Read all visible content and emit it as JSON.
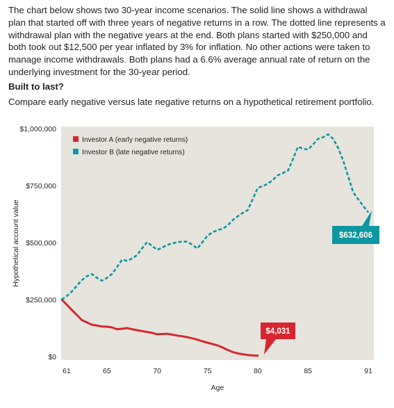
{
  "intro_text": "The chart below shows two 30-year income scenarios. The solid line shows a withdrawal plan that started off with three years of negative returns in a row. The dotted line represents a withdrawal plan with the negative years at the end. Both plans started with $250,000 and both took out $12,500 per year inflated by 3% for inflation. No other actions were taken to manage income withdrawals. Both plans had a 6.6% average annual rate of return on the underlying investment for the 30-year period.",
  "heading": "Built to last?",
  "subheading": "Compare early negative versus late negative returns on a hypothetical retirement portfolio.",
  "colors": {
    "plot_background": "#e6e4dd",
    "investor_a": "#d7262f",
    "investor_b": "#0d97a1"
  },
  "chart_data": {
    "type": "line",
    "xlabel": "Age",
    "ylabel": "Hypothetical account value",
    "xlim": [
      61,
      91
    ],
    "ylim": [
      0,
      1000000
    ],
    "x_ticks": [
      "61",
      "65",
      "70",
      "75",
      "80",
      "85",
      "91"
    ],
    "y_ticks": [
      "$0",
      "$250,000",
      "$500,000",
      "$750,000",
      "$1,000,000"
    ],
    "grid": false,
    "legend_position": "top-left",
    "series": [
      {
        "name": "Investor A (early negative returns)",
        "style": "solid",
        "x": [
          60.5,
          61,
          61.5,
          62,
          62.5,
          63,
          63.5,
          64,
          64.5,
          65,
          65.5,
          66,
          66.5,
          67,
          67.5,
          68,
          68.5,
          69,
          69.5,
          70,
          70.5,
          71,
          71.5,
          72,
          72.5,
          73,
          73.5,
          74,
          74.5,
          75,
          75.5,
          76,
          76.5,
          77,
          77.5,
          78,
          78.5,
          79,
          79.5,
          80
        ],
        "y": [
          250000,
          228000,
          205000,
          183000,
          160000,
          150000,
          140000,
          136000,
          132000,
          131000,
          128000,
          120000,
          122000,
          125000,
          120000,
          116000,
          112000,
          108000,
          104000,
          98000,
          99000,
          100000,
          96000,
          92000,
          89000,
          85000,
          80000,
          74000,
          67000,
          61000,
          55000,
          49000,
          40000,
          29000,
          20000,
          14000,
          10000,
          7000,
          5000,
          4031
        ]
      },
      {
        "name": "Investor B (late negative returns)",
        "style": "dotted",
        "x": [
          60.5,
          61,
          61.5,
          62,
          62.5,
          63,
          63.5,
          64,
          64.5,
          65,
          65.5,
          66,
          66.5,
          67,
          67.5,
          68,
          68.5,
          69,
          69.5,
          70,
          70.5,
          71,
          71.5,
          72,
          72.5,
          73,
          73.5,
          74,
          74.5,
          75,
          75.5,
          76,
          76.5,
          77,
          77.5,
          78,
          78.5,
          79,
          79.5,
          80,
          80.5,
          81,
          81.5,
          82,
          82.5,
          83,
          83.5,
          84,
          84.5,
          85,
          85.5,
          86,
          86.5,
          87,
          87.5,
          88,
          88.5,
          89,
          89.5,
          90,
          90.5,
          91
        ],
        "y": [
          250000,
          265000,
          285000,
          310000,
          335000,
          352000,
          362000,
          345000,
          333000,
          345000,
          362000,
          392000,
          425000,
          420000,
          430000,
          445000,
          475000,
          502000,
          485000,
          468000,
          478000,
          490000,
          496000,
          502000,
          504000,
          504000,
          490000,
          474000,
          502000,
          530000,
          545000,
          555000,
          560000,
          575000,
          598000,
          615000,
          630000,
          642000,
          690000,
          740000,
          748000,
          758000,
          775000,
          795000,
          805000,
          815000,
          865000,
          920000,
          912000,
          908000,
          930000,
          955000,
          962000,
          975000,
          955000,
          915000,
          860000,
          790000,
          720000,
          690000,
          660000,
          632606
        ]
      }
    ],
    "annotations": [
      {
        "series": "Investor B (late negative returns)",
        "label": "$632,606"
      },
      {
        "series": "Investor A (early negative returns)",
        "label": "$4,031"
      }
    ]
  }
}
